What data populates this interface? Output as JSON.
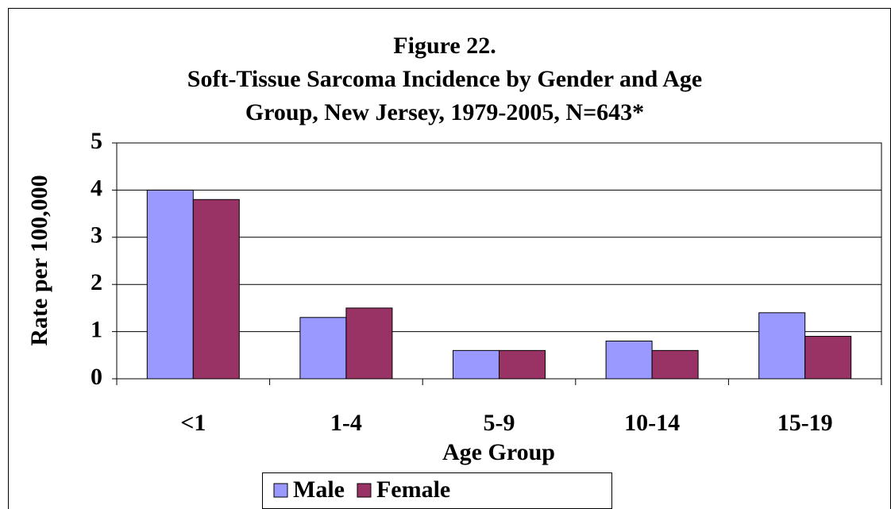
{
  "chart_data": {
    "type": "bar",
    "title": "Figure 22.",
    "subtitle": [
      "Soft-Tissue Sarcoma Incidence by Gender and Age",
      "Group, New Jersey, 1979-2005, N=643*"
    ],
    "x_label": "Age Group",
    "y_label": "Rate per 100,000",
    "categories": [
      "<1",
      "1-4",
      "5-9",
      "10-14",
      "15-19"
    ],
    "series": [
      {
        "name": "Male",
        "color": "#9999ff",
        "values": [
          4.0,
          1.3,
          0.6,
          0.8,
          1.4
        ]
      },
      {
        "name": "Female",
        "color": "#993366",
        "values": [
          3.8,
          1.5,
          0.6,
          0.6,
          0.9
        ]
      }
    ],
    "ylim": [
      0,
      5
    ],
    "yticks": [
      0,
      1,
      2,
      3,
      4,
      5
    ],
    "grid": true,
    "legend": "bottom"
  }
}
